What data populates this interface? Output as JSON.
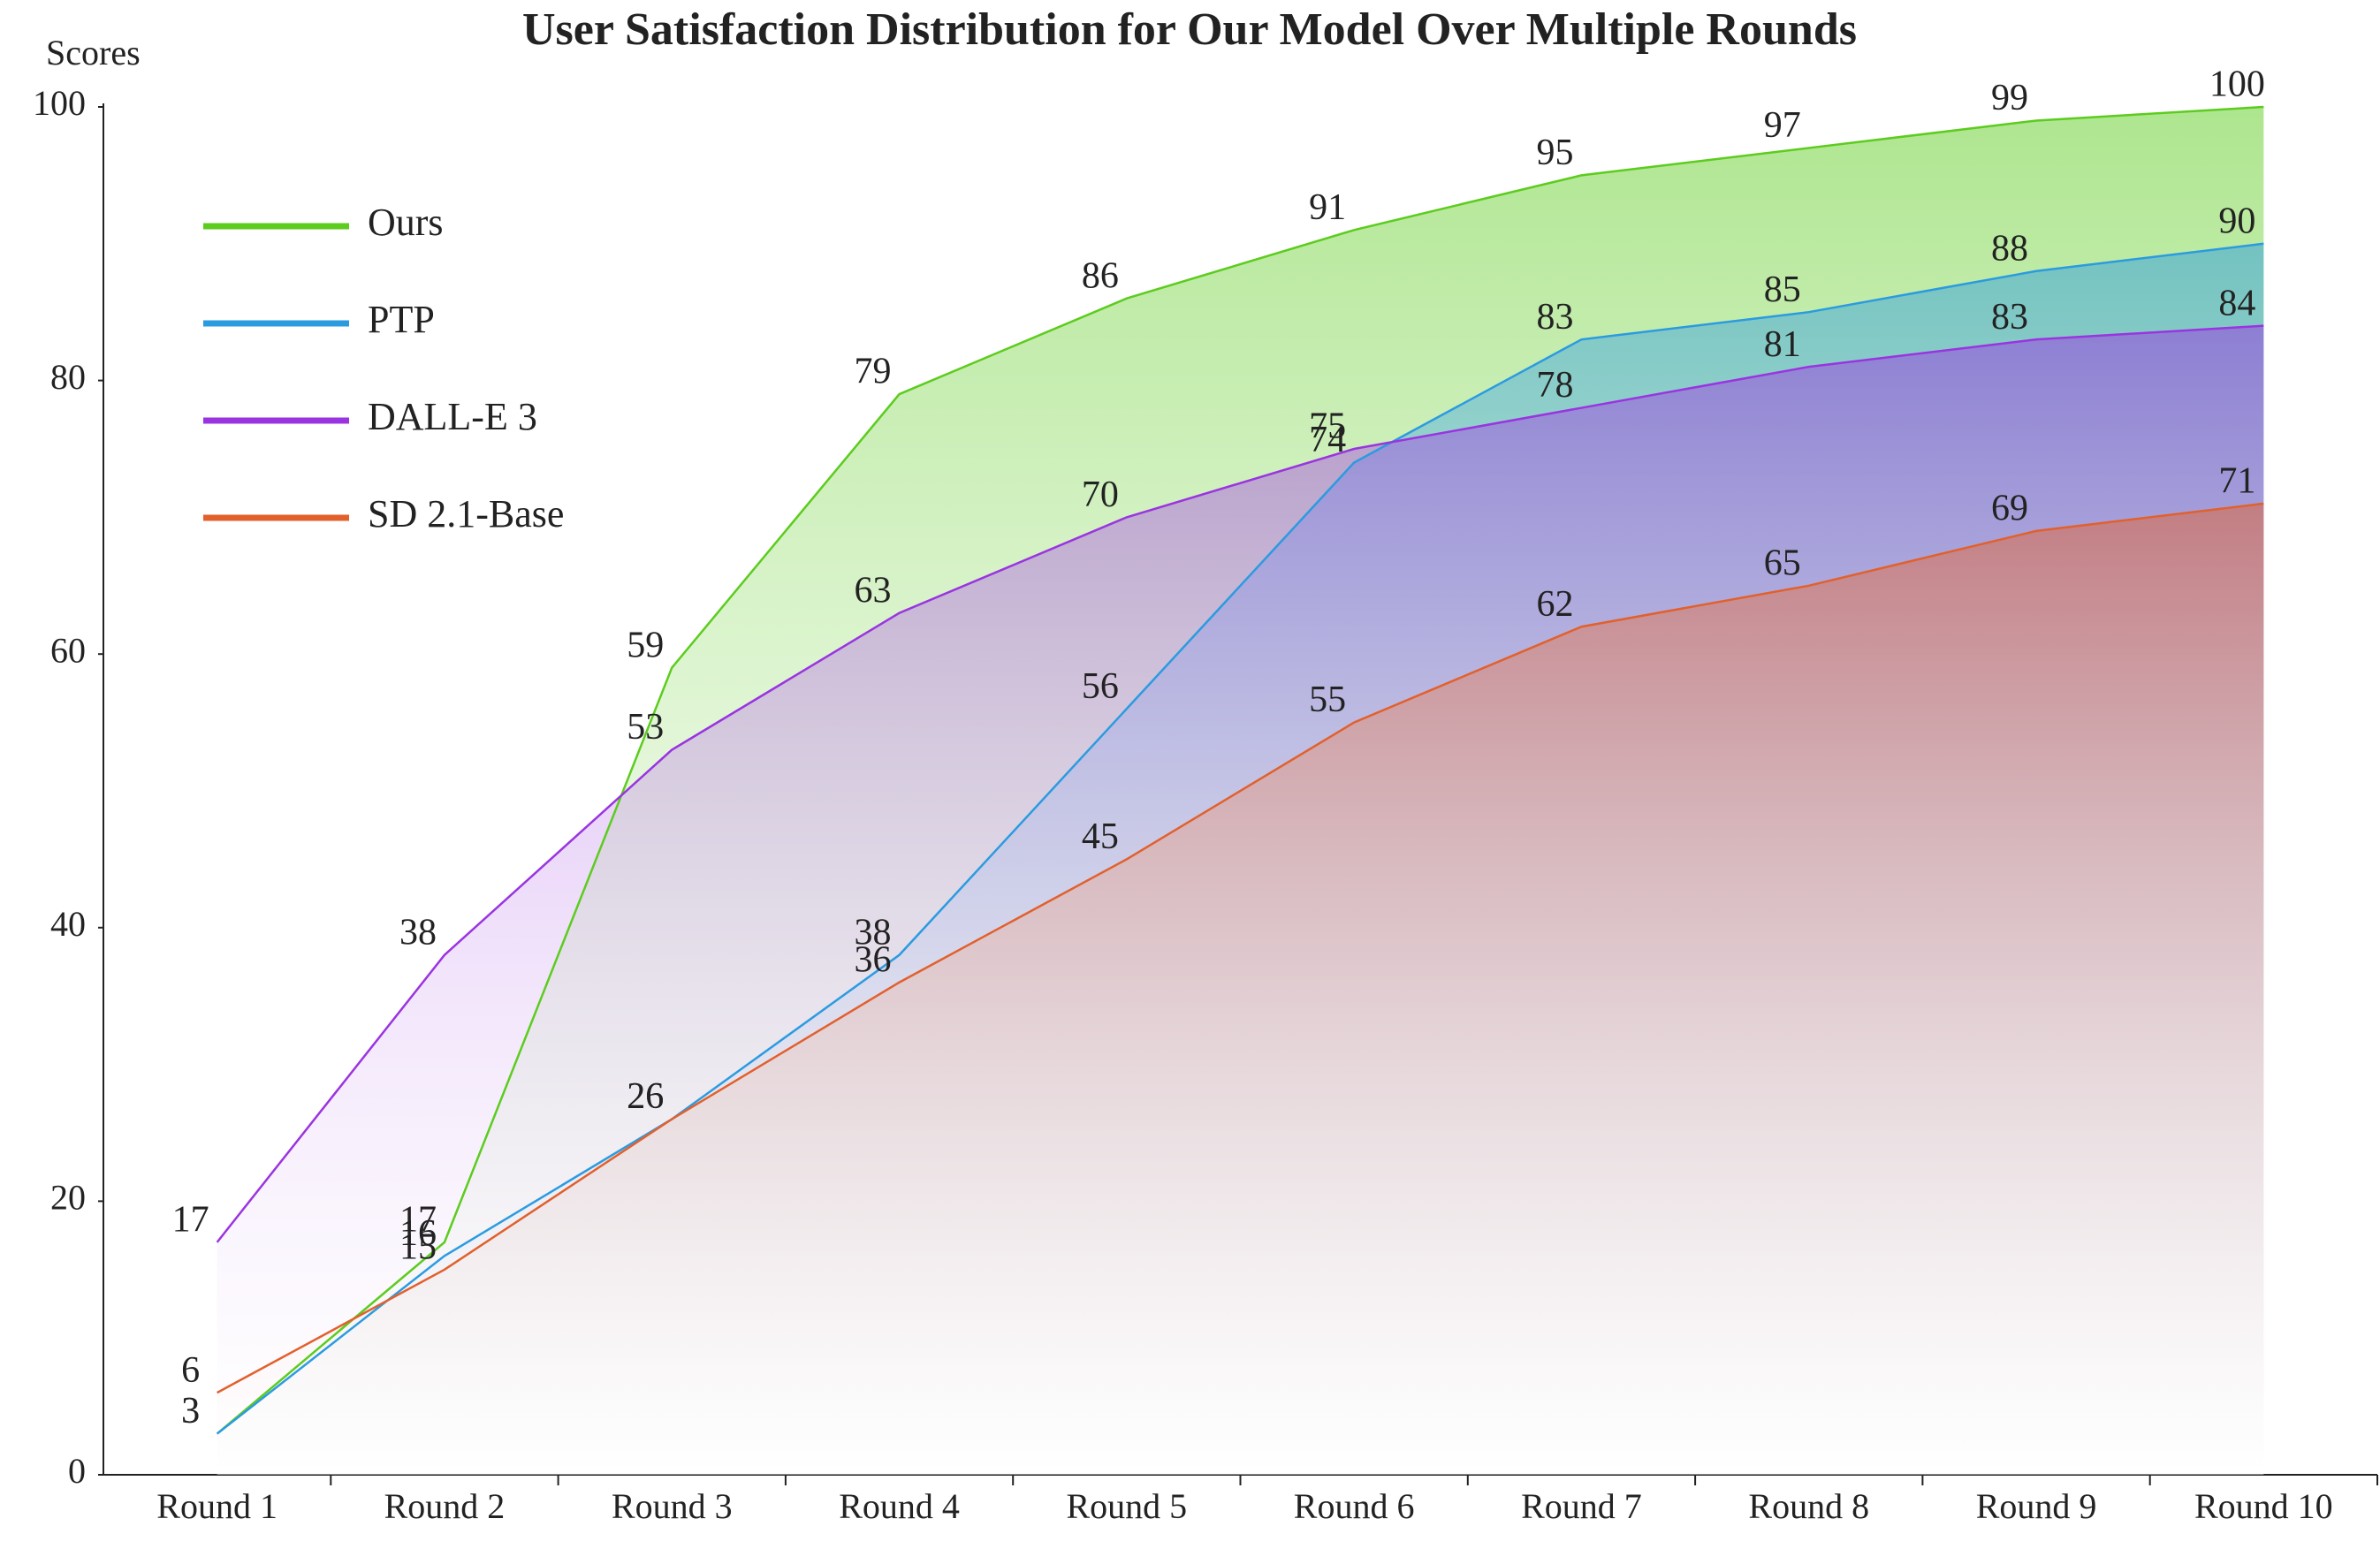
{
  "chart_data": {
    "type": "area",
    "title": "User Satisfaction Distribution for Our Model Over Multiple Rounds",
    "y_label": "Scores",
    "categories": [
      "Round 1",
      "Round 2",
      "Round 3",
      "Round 4",
      "Round 5",
      "Round 6",
      "Round 7",
      "Round 8",
      "Round 9",
      "Round 10"
    ],
    "series": [
      {
        "name": "Ours",
        "color": "#5ccc1e",
        "values": [
          3,
          17,
          59,
          79,
          86,
          91,
          95,
          97,
          99,
          100
        ]
      },
      {
        "name": "PTP",
        "color": "#2b9be0",
        "values": [
          3,
          16,
          26,
          38,
          56,
          74,
          83,
          85,
          88,
          90
        ]
      },
      {
        "name": "DALL-E 3",
        "color": "#9a34e0",
        "values": [
          17,
          38,
          53,
          63,
          70,
          75,
          78,
          81,
          83,
          84
        ]
      },
      {
        "name": "SD 2.1-Base",
        "color": "#e2602c",
        "values": [
          6,
          15,
          26,
          36,
          45,
          55,
          62,
          65,
          69,
          71
        ]
      }
    ],
    "ylim": [
      0,
      100
    ],
    "yticks": [
      0,
      20,
      40,
      60,
      80,
      100
    ],
    "grid": false,
    "legend": "upper left"
  }
}
